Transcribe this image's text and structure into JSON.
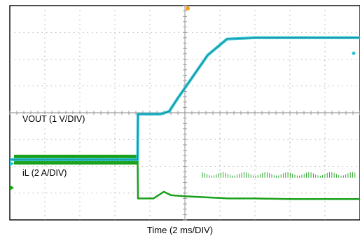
{
  "chart_data": {
    "type": "line",
    "xlabel": "Time (2 ms/DIV)",
    "xlim": [
      0,
      20
    ],
    "grid": true,
    "x_divisions": 10,
    "y_divisions": 8,
    "series": [
      {
        "name": "VOUT (1 V/DIV)",
        "color": "#2ec4d6",
        "unit_per_div": "1 V",
        "x": [
          0,
          7.3,
          7.32,
          8.6,
          9.1,
          9.6,
          10.4,
          11.3,
          12.4,
          14,
          16,
          18,
          20
        ],
        "y": [
          0.15,
          0.15,
          1.85,
          1.85,
          1.95,
          2.45,
          3.2,
          4.05,
          4.65,
          4.7,
          4.7,
          4.7,
          4.7
        ]
      },
      {
        "name": "iL (2 A/DIV)",
        "color": "#1aa01a",
        "unit_per_div": "2 A",
        "x": [
          0,
          7.3,
          7.32,
          8.2,
          8.8,
          9.2,
          10.0,
          11.0,
          12.5,
          14,
          16,
          20
        ],
        "y": [
          1.05,
          1.05,
          -0.4,
          -0.4,
          -0.15,
          -0.28,
          -0.32,
          -0.35,
          -0.4,
          -0.4,
          -0.42,
          -0.42
        ]
      }
    ]
  }
}
